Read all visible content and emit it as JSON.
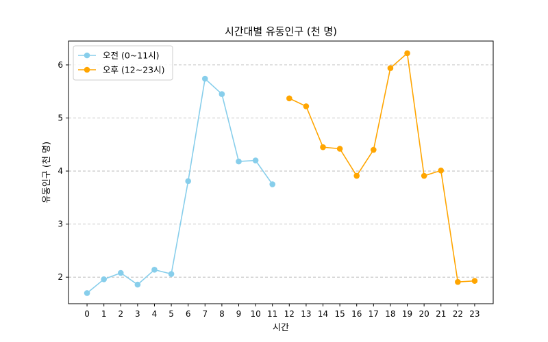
{
  "chart_data": {
    "type": "line",
    "title": "시간대별 유동인구 (천 명)",
    "xlabel": "시간",
    "ylabel": "유동인구 (천 명)",
    "x_ticks": [
      "0",
      "1",
      "2",
      "3",
      "4",
      "5",
      "6",
      "7",
      "8",
      "9",
      "10",
      "11",
      "12",
      "13",
      "14",
      "15",
      "16",
      "17",
      "18",
      "19",
      "20",
      "21",
      "22",
      "23"
    ],
    "y_ticks": [
      "2",
      "3",
      "4",
      "5",
      "6"
    ],
    "xlim": [
      -1.1,
      24.1
    ],
    "ylim": [
      1.5,
      6.45
    ],
    "grid": "y-dashed",
    "legend_position": "top-left",
    "series": [
      {
        "name": "오전 (0~11시)",
        "color": "#87CEEB",
        "x": [
          0,
          1,
          2,
          3,
          4,
          5,
          6,
          7,
          8,
          9,
          10,
          11
        ],
        "values": [
          1.7,
          1.96,
          2.08,
          1.86,
          2.14,
          2.06,
          3.81,
          5.74,
          5.45,
          4.18,
          4.2,
          3.75
        ]
      },
      {
        "name": "오후 (12~23시)",
        "color": "#FFA500",
        "x": [
          12,
          13,
          14,
          15,
          16,
          17,
          18,
          19,
          20,
          21,
          22,
          23
        ],
        "values": [
          5.37,
          5.22,
          4.45,
          4.42,
          3.91,
          4.4,
          5.94,
          6.22,
          3.91,
          4.01,
          1.91,
          1.93
        ]
      }
    ]
  }
}
